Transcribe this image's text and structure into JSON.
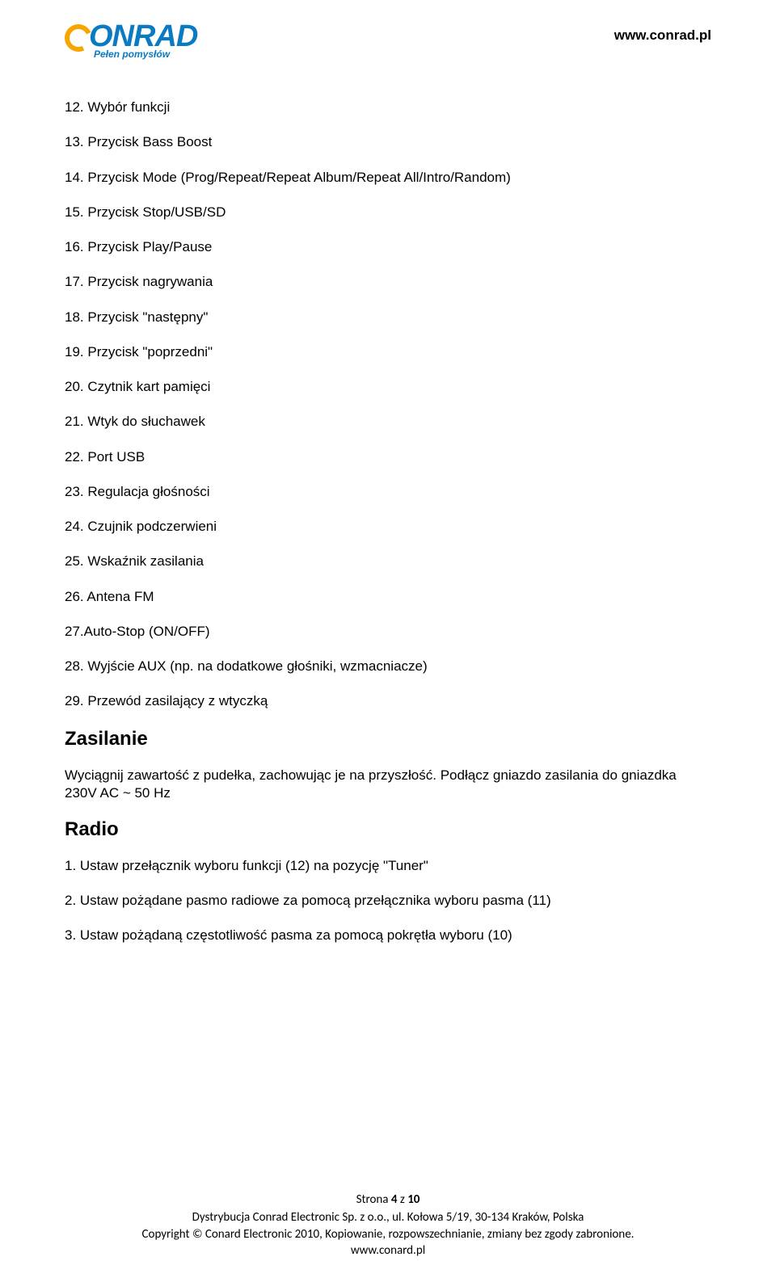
{
  "header": {
    "logo_text": "ONRAD",
    "logo_sub": "Pełen pomysłów",
    "url": "www.conrad.pl"
  },
  "items": [
    "12. Wybór funkcji",
    "13. Przycisk Bass Boost",
    "14. Przycisk Mode (Prog/Repeat/Repeat Album/Repeat All/Intro/Random)",
    "15. Przycisk Stop/USB/SD",
    "16. Przycisk Play/Pause",
    "17. Przycisk nagrywania",
    "18. Przycisk \"następny\"",
    "19. Przycisk \"poprzedni\"",
    "20. Czytnik kart pamięci",
    "21. Wtyk do słuchawek",
    "22. Port USB",
    "23. Regulacja głośności",
    "24. Czujnik podczerwieni",
    "25. Wskaźnik zasilania",
    "26. Antena FM",
    "27.Auto-Stop (ON/OFF)",
    "28. Wyjście AUX (np. na dodatkowe głośniki, wzmacniacze)",
    "29. Przewód zasilający z wtyczką"
  ],
  "section1": {
    "heading": "Zasilanie",
    "para": "Wyciągnij zawartość z pudełka, zachowując je na przyszłość. Podłącz gniazdo zasilania do gniazdka 230V AC ~ 50 Hz"
  },
  "section2": {
    "heading": "Radio",
    "items": [
      "1. Ustaw przełącznik wyboru funkcji (12) na pozycję \"Tuner\"",
      "2. Ustaw pożądane pasmo radiowe za pomocą przełącznika wyboru pasma (11)",
      "3. Ustaw pożądaną częstotliwość pasma za pomocą pokrętła wyboru (10)"
    ]
  },
  "footer": {
    "page": "Strona 4 z 10",
    "line1": "Dystrybucja Conrad Electronic Sp. z o.o., ul. Kołowa 5/19, 30-134 Kraków, Polska",
    "line2": "Copyright © Conard Electronic 2010, Kopiowanie, rozpowszechnianie, zmiany bez zgody zabronione.",
    "line3": "www.conard.pl"
  }
}
